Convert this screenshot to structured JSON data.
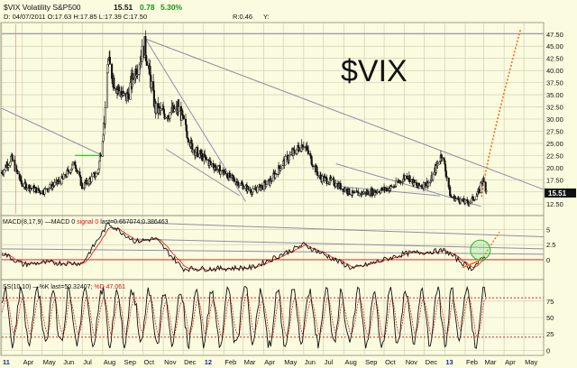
{
  "header": {
    "symbol": "$VIX Volatility S&P500",
    "last": "15.51",
    "change": "0.78",
    "change_pct": "5.30%",
    "ohlc_line": "D: 04/07/2011 O:17.63 H:17.85 L:17.39 C:17.50",
    "r_label": "R:0.46",
    "y_label": "Y:"
  },
  "watermark": "$VIX",
  "price_panel": {
    "last_badge": "15.51",
    "ylim": [
      10.5,
      49.5
    ],
    "ticks": [
      "47.50",
      "45.00",
      "42.50",
      "40.00",
      "37.50",
      "35.00",
      "32.50",
      "30.00",
      "27.50",
      "25.00",
      "22.50",
      "20.00",
      "17.50",
      "15.00",
      "12.50"
    ],
    "tick_values": [
      47.5,
      45,
      42.5,
      40,
      37.5,
      35,
      32.5,
      30,
      27.5,
      25,
      22.5,
      20,
      17.5,
      15,
      12.5
    ]
  },
  "macd_panel": {
    "label_prefix": "MACD(8,17,9)",
    "label_macd": "—MACD 0",
    "label_signal": "signal 0",
    "label_last": "last=0.657074;0.386463",
    "ylim": [
      -3,
      7
    ],
    "ticks": [
      "5",
      "2.5",
      "0"
    ],
    "tick_values": [
      5,
      2.5,
      0
    ]
  },
  "ss_panel": {
    "label_prefix": "SS(10,10)",
    "label_k": "—%K",
    "label_last": "last=50.32407;",
    "label_d": "%D",
    "label_d_val": "47.061",
    "ylim": [
      -5,
      105
    ],
    "ticks": [
      "75",
      "50",
      "25",
      "0"
    ],
    "tick_values": [
      75,
      50,
      25,
      0
    ]
  },
  "x_axis": {
    "labels": [
      "11",
      "Apr",
      "May",
      "Jun",
      "Jul",
      "Aug",
      "Sep",
      "Oct",
      "Nov",
      "Dec",
      "12",
      "Feb",
      "Mar",
      "Apr",
      "May",
      "Jun",
      "Jul",
      "Aug",
      "Sep",
      "Oct",
      "Nov",
      "Dec",
      "13",
      "Feb",
      "Mar",
      "Apr",
      "May"
    ],
    "year_labels": [
      "11",
      "12",
      "13"
    ]
  },
  "colors": {
    "background": "#fbfbdf",
    "grid": "#c9c9b4",
    "candle": "#111111",
    "trendline": "#8e8ea8",
    "macd": "#111111",
    "signal": "#e01010",
    "zero_line": "#d01010",
    "projection": "#f07020",
    "circle": "#44bb44",
    "green_mark": "#22cc22",
    "up_change": "#119911"
  },
  "chart_data": {
    "type": "candlestick",
    "title": "$VIX Volatility S&P500",
    "x_range": [
      "2011-03-01",
      "2013-05-31"
    ],
    "price_anchors": {
      "dates": [
        "2011-03-01",
        "2011-03-15",
        "2011-04-01",
        "2011-05-01",
        "2011-06-01",
        "2011-06-20",
        "2011-07-01",
        "2011-07-25",
        "2011-08-05",
        "2011-08-09",
        "2011-08-20",
        "2011-09-05",
        "2011-09-20",
        "2011-10-04",
        "2011-10-20",
        "2011-11-05",
        "2011-11-25",
        "2011-12-15",
        "2012-01-10",
        "2012-02-10",
        "2012-03-15",
        "2012-04-10",
        "2012-05-01",
        "2012-06-01",
        "2012-06-25",
        "2012-07-15",
        "2012-08-15",
        "2012-09-15",
        "2012-10-15",
        "2012-11-05",
        "2012-11-20",
        "2012-12-10",
        "2012-12-28",
        "2013-01-10",
        "2013-02-05",
        "2013-02-20",
        "2013-02-27",
        "2013-03-05"
      ],
      "closes": [
        19.0,
        22.0,
        16.5,
        15.0,
        17.5,
        21.0,
        16.0,
        19.0,
        31.0,
        42.0,
        37.0,
        34.0,
        40.0,
        45.0,
        32.0,
        31.0,
        32.0,
        24.0,
        21.0,
        18.0,
        15.0,
        17.0,
        21.0,
        25.0,
        18.0,
        17.0,
        14.5,
        15.0,
        16.0,
        18.5,
        16.0,
        17.0,
        23.0,
        14.0,
        12.7,
        14.5,
        17.5,
        15.5
      ]
    },
    "macd_anchors": {
      "dates": [
        "2011-03-01",
        "2011-04-01",
        "2011-05-01",
        "2011-07-01",
        "2011-08-10",
        "2011-09-20",
        "2011-10-20",
        "2011-12-01",
        "2012-01-15",
        "2012-03-15",
        "2012-06-01",
        "2012-08-15",
        "2012-11-01",
        "2013-01-01",
        "2013-02-10",
        "2013-03-05"
      ],
      "values": [
        1.2,
        -0.8,
        -0.5,
        -0.6,
        6.0,
        3.0,
        3.5,
        -1.5,
        -1.5,
        -1.3,
        2.5,
        -1.5,
        1.0,
        1.5,
        -1.5,
        0.66
      ]
    },
    "stoch": {
      "last_k": 50.32407,
      "last_d": 47.061
    }
  }
}
